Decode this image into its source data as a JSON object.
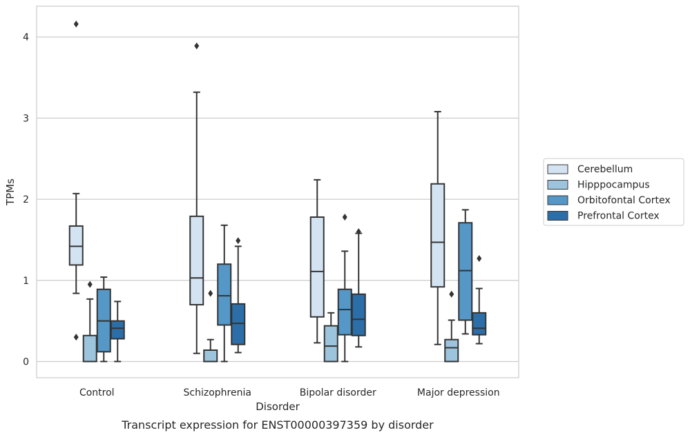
{
  "caption": "Transcript expression for ENST00000397359 by disorder",
  "chart_data": {
    "type": "box",
    "title": "",
    "xlabel": "Disorder",
    "ylabel": "TPMs",
    "ylim": [
      -0.2,
      4.38
    ],
    "yticks": [
      0,
      1,
      2,
      3,
      4
    ],
    "grid": true,
    "legend_position": "right",
    "categories": [
      "Control",
      "Schizophrenia",
      "Bipolar disorder",
      "Major depression"
    ],
    "series": [
      {
        "name": "Cerebellum",
        "color": "#d4e3f2",
        "boxes": [
          {
            "whisker_low": 0.84,
            "q1": 1.19,
            "median": 1.42,
            "q3": 1.67,
            "whisker_high": 2.07,
            "outliers": [
              0.3,
              4.16
            ]
          },
          {
            "whisker_low": 0.1,
            "q1": 0.7,
            "median": 1.03,
            "q3": 1.79,
            "whisker_high": 3.32,
            "outliers": [
              3.89
            ]
          },
          {
            "whisker_low": 0.23,
            "q1": 0.55,
            "median": 1.11,
            "q3": 1.78,
            "whisker_high": 2.24,
            "outliers": []
          },
          {
            "whisker_low": 0.21,
            "q1": 0.92,
            "median": 1.47,
            "q3": 2.19,
            "whisker_high": 3.08,
            "outliers": []
          }
        ]
      },
      {
        "name": "Hipppocampus",
        "color": "#9cc4dd",
        "boxes": [
          {
            "whisker_low": 0.0,
            "q1": 0.0,
            "median": 0.0,
            "q3": 0.32,
            "whisker_high": 0.77,
            "outliers": [
              0.95
            ]
          },
          {
            "whisker_low": 0.0,
            "q1": 0.0,
            "median": 0.0,
            "q3": 0.14,
            "whisker_high": 0.27,
            "outliers": [
              0.84
            ]
          },
          {
            "whisker_low": 0.0,
            "q1": 0.0,
            "median": 0.19,
            "q3": 0.44,
            "whisker_high": 0.6,
            "outliers": []
          },
          {
            "whisker_low": 0.0,
            "q1": 0.0,
            "median": 0.17,
            "q3": 0.27,
            "whisker_high": 0.51,
            "outliers": [
              0.83
            ]
          }
        ]
      },
      {
        "name": "Orbitofontal Cortex",
        "color": "#5598c8",
        "boxes": [
          {
            "whisker_low": 0.0,
            "q1": 0.12,
            "median": 0.5,
            "q3": 0.89,
            "whisker_high": 1.04,
            "outliers": []
          },
          {
            "whisker_low": 0.0,
            "q1": 0.45,
            "median": 0.81,
            "q3": 1.2,
            "whisker_high": 1.68,
            "outliers": []
          },
          {
            "whisker_low": 0.0,
            "q1": 0.33,
            "median": 0.64,
            "q3": 0.89,
            "whisker_high": 1.36,
            "outliers": [
              1.78
            ]
          },
          {
            "whisker_low": 0.34,
            "q1": 0.51,
            "median": 1.12,
            "q3": 1.71,
            "whisker_high": 1.87,
            "outliers": []
          }
        ]
      },
      {
        "name": "Prefrontal Cortex",
        "color": "#2c6ea8",
        "boxes": [
          {
            "whisker_low": 0.0,
            "q1": 0.28,
            "median": 0.41,
            "q3": 0.5,
            "whisker_high": 0.74,
            "outliers": []
          },
          {
            "whisker_low": 0.11,
            "q1": 0.21,
            "median": 0.47,
            "q3": 0.71,
            "whisker_high": 1.42,
            "outliers": [
              1.49
            ]
          },
          {
            "whisker_low": 0.18,
            "q1": 0.32,
            "median": 0.52,
            "q3": 0.83,
            "whisker_high": 1.58,
            "outliers": [
              1.6
            ]
          },
          {
            "whisker_low": 0.22,
            "q1": 0.33,
            "median": 0.41,
            "q3": 0.6,
            "whisker_high": 0.9,
            "outliers": [
              1.27
            ]
          }
        ]
      }
    ]
  }
}
